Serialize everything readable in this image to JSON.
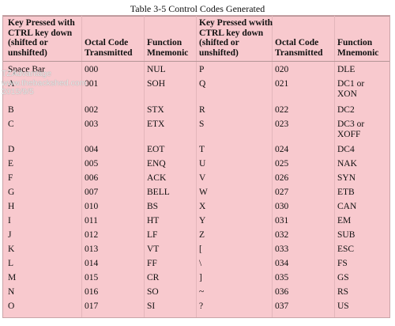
{
  "caption": "Table 3-5 Control Codes Generated",
  "headers": {
    "key_left_lines": [
      "Key Pressed with",
      "CTRL key down",
      "(shifted or",
      "unshifted)"
    ],
    "octal_left_lines": [
      "Octal Code",
      "Transmitted"
    ],
    "func_left_lines": [
      "Function",
      "Mnemonic"
    ],
    "key_right_lines": [
      "Key Pressed wwith",
      "CTRL key down",
      "(shifted or",
      "unshifted)"
    ],
    "octal_right_lines": [
      "Octal Code",
      "Transmitted"
    ],
    "func_right_lines": [
      "Function",
      "Mnemonic"
    ]
  },
  "rows": [
    {
      "k1": "Space Bar",
      "o1": "000",
      "f1": "NUL",
      "k2": "P",
      "o2": "020",
      "f2": "DLE"
    },
    {
      "k1": "A",
      "o1": "001",
      "f1": "SOH",
      "k2": "Q",
      "o2": "021",
      "f2": "DC1 or\nXON"
    },
    {
      "k1": "B",
      "o1": "002",
      "f1": "STX",
      "k2": "R",
      "o2": "022",
      "f2": "DC2"
    },
    {
      "k1": "C",
      "o1": "003",
      "f1": "ETX",
      "k2": "S",
      "o2": "023",
      "f2": "DC3 or\nXOFF"
    },
    {
      "k1": "D",
      "o1": "004",
      "f1": "EOT",
      "k2": "T",
      "o2": "024",
      "f2": "DC4"
    },
    {
      "k1": "E",
      "o1": "005",
      "f1": "ENQ",
      "k2": "U",
      "o2": "025",
      "f2": "NAK"
    },
    {
      "k1": "F",
      "o1": "006",
      "f1": "ACK",
      "k2": "V",
      "o2": "026",
      "f2": "SYN"
    },
    {
      "k1": "G",
      "o1": "007",
      "f1": "BELL",
      "k2": "W",
      "o2": "027",
      "f2": "ETB"
    },
    {
      "k1": "H",
      "o1": "010",
      "f1": "BS",
      "k2": "X",
      "o2": "030",
      "f2": "CAN"
    },
    {
      "k1": "I",
      "o1": "011",
      "f1": "HT",
      "k2": "Y",
      "o2": "031",
      "f2": "EM"
    },
    {
      "k1": "J",
      "o1": "012",
      "f1": "LF",
      "k2": "Z",
      "o2": "032",
      "f2": "SUB"
    },
    {
      "k1": "K",
      "o1": "013",
      "f1": "VT",
      "k2": "[",
      "o2": "033",
      "f2": "ESC"
    },
    {
      "k1": "L",
      "o1": "014",
      "f1": "FF",
      "k2": "\\",
      "o2": "034",
      "f2": "FS"
    },
    {
      "k1": "M",
      "o1": "015",
      "f1": "CR",
      "k2": "]",
      "o2": "035",
      "f2": "GS"
    },
    {
      "k1": "N",
      "o1": "016",
      "f1": "SO",
      "k2": "~",
      "o2": "036",
      "f2": "RS"
    },
    {
      "k1": "O",
      "o1": "017",
      "f1": "SI",
      "k2": "?",
      "o2": "037",
      "f2": "US"
    }
  ],
  "watermark": [
    "TZAdvantage",
    "www.thebackshed.com",
    "2015/9/5"
  ]
}
